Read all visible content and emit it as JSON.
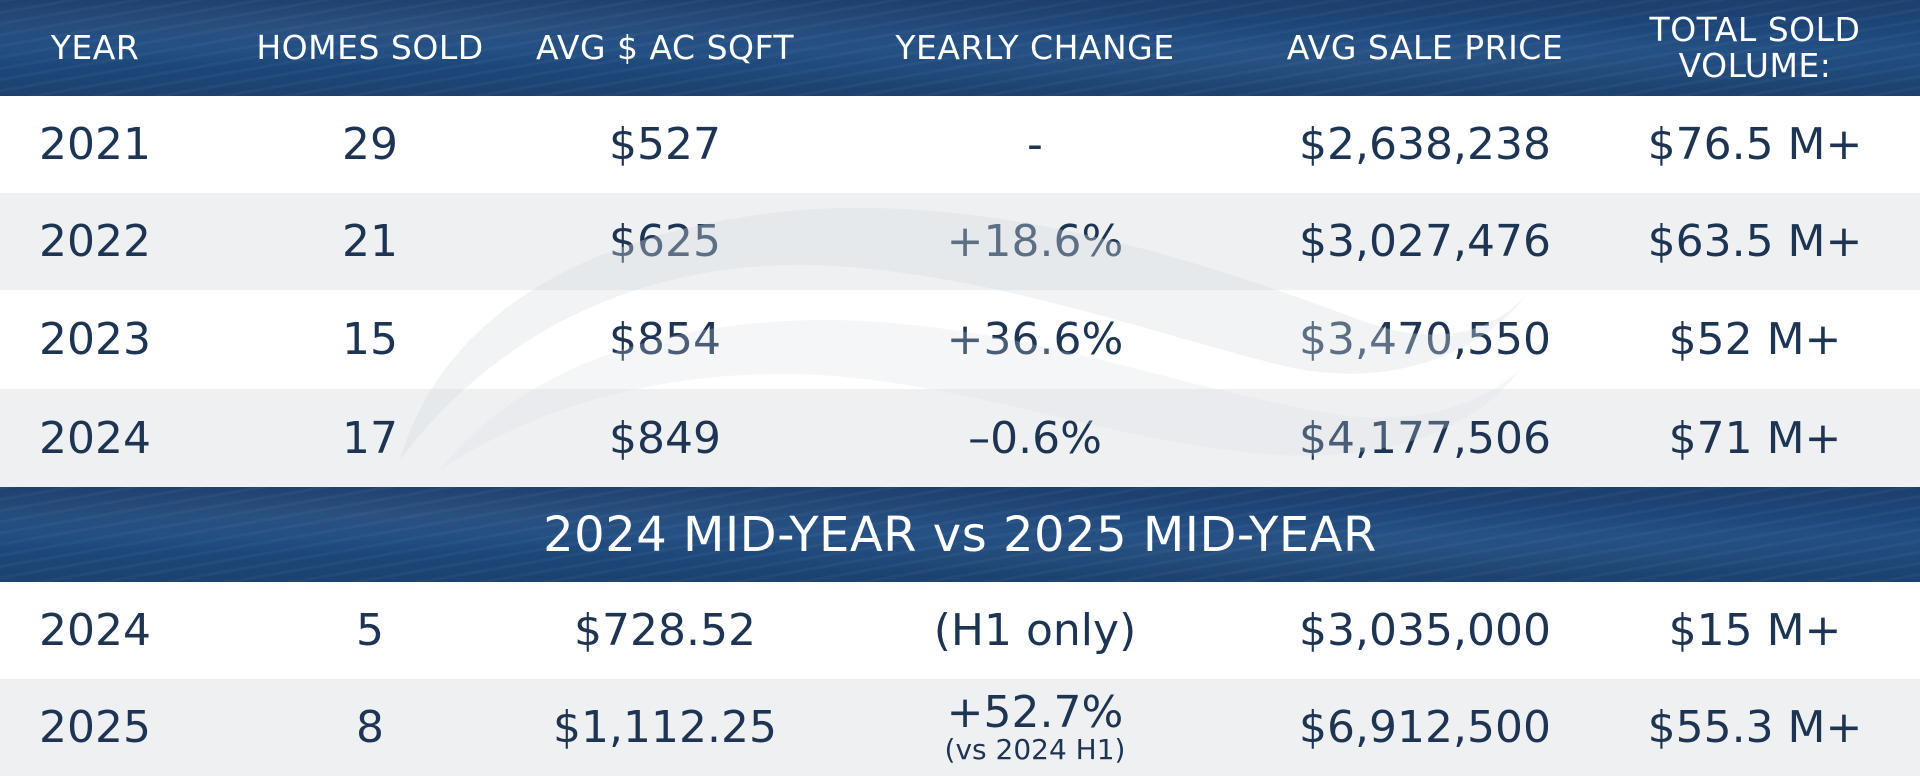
{
  "headers": {
    "year": "YEAR",
    "homes_sold": "HOMES SOLD",
    "avg_sqft": "AVG $ AC SQFT",
    "yearly_change": "YEARLY CHANGE",
    "avg_sale_price": "AVG SALE PRICE",
    "total_sold_volume_line1": "TOTAL SOLD",
    "total_sold_volume_line2": "VOLUME:"
  },
  "annual_rows": [
    {
      "year": "2021",
      "homes_sold": "29",
      "avg_sqft": "$527",
      "yearly_change": "-",
      "avg_sale_price": "$2,638,238",
      "total_volume": "$76.5 M+"
    },
    {
      "year": "2022",
      "homes_sold": "21",
      "avg_sqft": "$625",
      "yearly_change": "+18.6%",
      "avg_sale_price": "$3,027,476",
      "total_volume": "$63.5 M+"
    },
    {
      "year": "2023",
      "homes_sold": "15",
      "avg_sqft": "$854",
      "yearly_change": "+36.6%",
      "avg_sale_price": "$3,470,550",
      "total_volume": "$52 M+"
    },
    {
      "year": "2024",
      "homes_sold": "17",
      "avg_sqft": "$849",
      "yearly_change": "–0.6%",
      "avg_sale_price": "$4,177,506",
      "total_volume": "$71 M+"
    }
  ],
  "midyear_title": "2024 MID-YEAR vs 2025 MID-YEAR",
  "midyear_rows": [
    {
      "year": "2024",
      "homes_sold": "5",
      "avg_sqft": "$728.52",
      "yearly_change": "(H1 only)",
      "yearly_change_note": "",
      "avg_sale_price": "$3,035,000",
      "total_volume": "$15 M+"
    },
    {
      "year": "2025",
      "homes_sold": "8",
      "avg_sqft": "$1,112.25",
      "yearly_change": "+52.7%",
      "yearly_change_note": "(vs 2024 H1)",
      "avg_sale_price": "$6,912,500",
      "total_volume": "$55.3 M+"
    }
  ],
  "colors": {
    "navy_text": "#1d3553",
    "ocean": "#1e4b80",
    "row_grey": "#eff0f2",
    "row_white": "#ffffff"
  }
}
